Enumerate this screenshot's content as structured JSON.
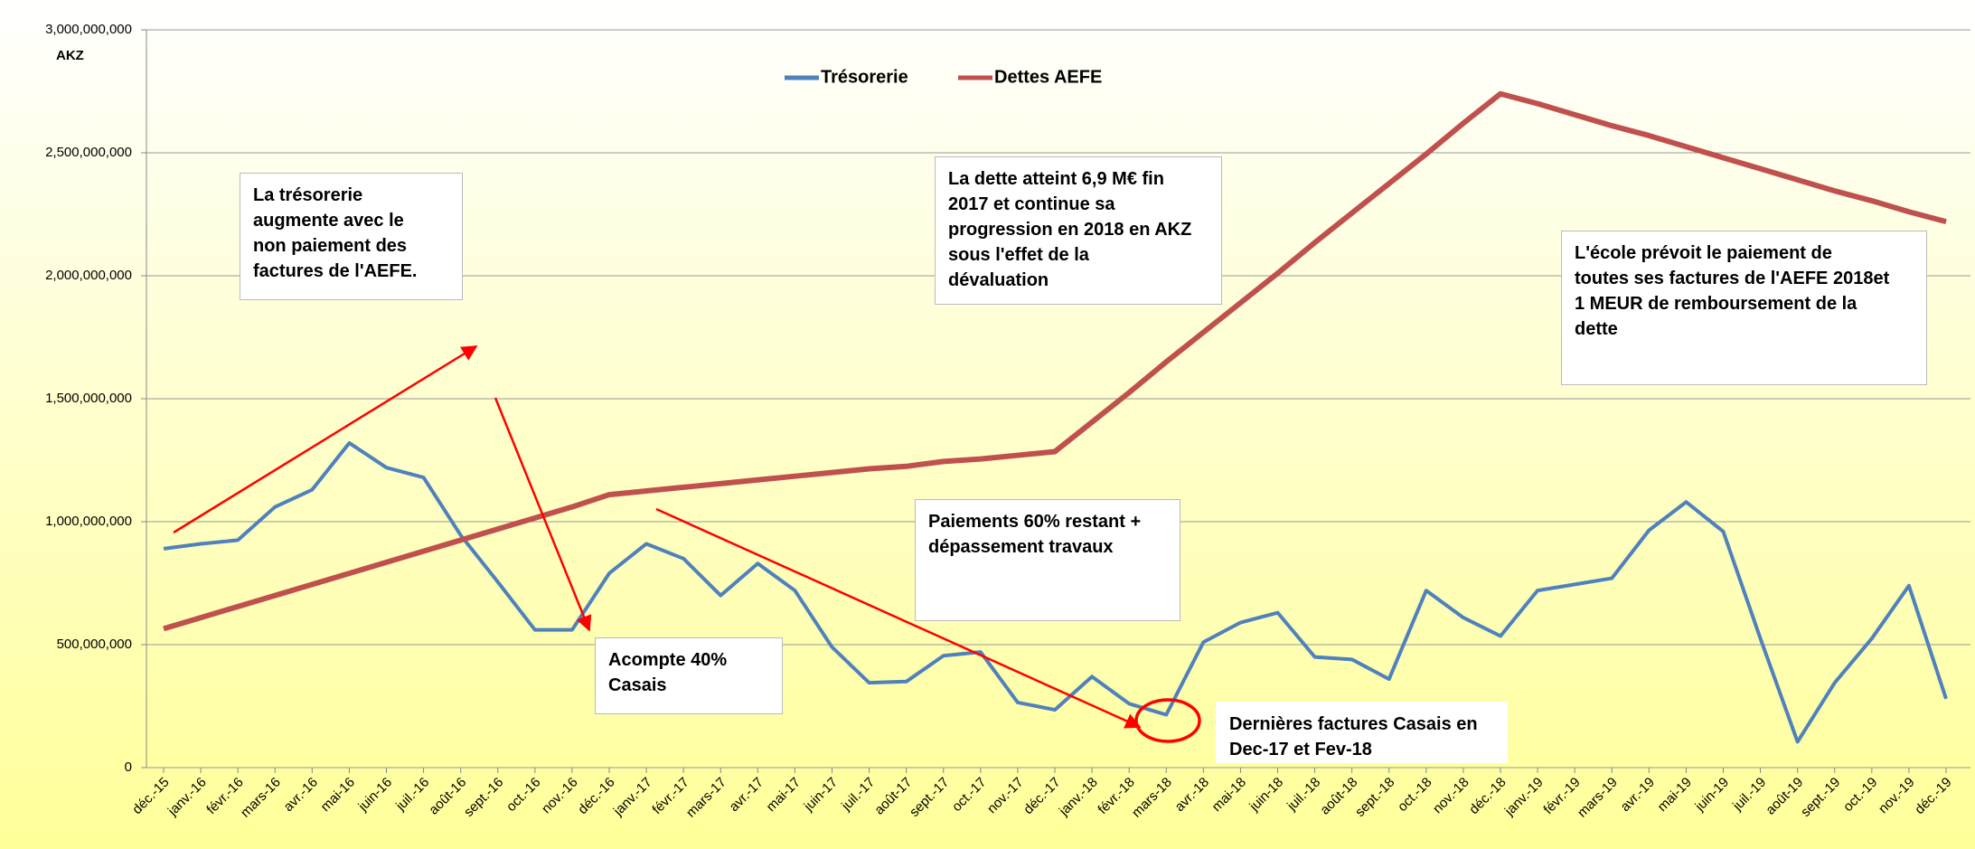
{
  "chart_data": {
    "type": "line",
    "y_unit_label": "AKZ",
    "categories": [
      "déc.-15",
      "janv.-16",
      "févr.-16",
      "mars-16",
      "avr.-16",
      "mai-16",
      "juin-16",
      "juil.-16",
      "août-16",
      "sept.-16",
      "oct.-16",
      "nov.-16",
      "déc.-16",
      "janv.-17",
      "févr.-17",
      "mars-17",
      "avr.-17",
      "mai-17",
      "juin-17",
      "juil.-17",
      "août-17",
      "sept.-17",
      "oct.-17",
      "nov.-17",
      "déc.-17",
      "janv.-18",
      "févr.-18",
      "mars-18",
      "avr.-18",
      "mai-18",
      "juin-18",
      "juil.-18",
      "août-18",
      "sept.-18",
      "oct.-18",
      "nov.-18",
      "déc.-18",
      "janv.-19",
      "févr.-19",
      "mars-19",
      "avr.-19",
      "mai-19",
      "juin-19",
      "juil.-19",
      "août-19",
      "sept.-19",
      "oct.-19",
      "nov.-19",
      "déc.-19"
    ],
    "series": [
      {
        "name": "Trésorerie",
        "color": "#4f81bd",
        "values": [
          890000000,
          910000000,
          925000000,
          1060000000,
          1130000000,
          1320000000,
          1220000000,
          1180000000,
          945000000,
          755000000,
          560000000,
          560000000,
          790000000,
          910000000,
          850000000,
          700000000,
          830000000,
          720000000,
          490000000,
          345000000,
          350000000,
          455000000,
          470000000,
          265000000,
          235000000,
          370000000,
          260000000,
          215000000,
          510000000,
          590000000,
          630000000,
          450000000,
          440000000,
          360000000,
          720000000,
          610000000,
          535000000,
          720000000,
          745000000,
          770000000,
          965000000,
          1080000000,
          960000000,
          525000000,
          105000000,
          345000000,
          525000000,
          740000000,
          280000000
        ]
      },
      {
        "name": "Dettes AEFE",
        "color": "#c0504d",
        "values": [
          565000000,
          610000000,
          655000000,
          700000000,
          745000000,
          790000000,
          835000000,
          880000000,
          925000000,
          970000000,
          1015000000,
          1060000000,
          1110000000,
          1125000000,
          1140000000,
          1155000000,
          1170000000,
          1185000000,
          1200000000,
          1215000000,
          1225000000,
          1245000000,
          1255000000,
          1270000000,
          1285000000,
          1405000000,
          1525000000,
          1650000000,
          1770000000,
          1890000000,
          2010000000,
          2135000000,
          2255000000,
          2375000000,
          2495000000,
          2620000000,
          2740000000,
          2700000000,
          2655000000,
          2610000000,
          2570000000,
          2525000000,
          2480000000,
          2435000000,
          2390000000,
          2345000000,
          2305000000,
          2260000000,
          2220000000
        ]
      }
    ],
    "ylim": [
      0,
      3000000000
    ],
    "yticks": [
      0,
      {
        "value": 500000000,
        "label": "500,000,000"
      },
      {
        "value": 1000000000,
        "label": "1,000,000,000"
      },
      {
        "value": 1500000000,
        "label": "1,500,000,000"
      },
      {
        "value": 2000000000,
        "label": "2,000,000,000"
      },
      {
        "value": 2500000000,
        "label": "2,500,000,000"
      },
      {
        "value": 3000000000,
        "label": "3,000,000,000"
      }
    ],
    "grid": true,
    "legend": "top",
    "annotations": [
      {
        "lines": [
          "La trésorerie",
          "augmente avec le",
          "non paiement des",
          "factures de l'AEFE."
        ]
      },
      {
        "lines": [
          "La dette atteint 6,9 M€ fin",
          "2017 et continue sa",
          "progression en 2018 en AKZ",
          "sous l'effet de la",
          "dévaluation"
        ]
      },
      {
        "lines": [
          "L'école prévoit le paiement de",
          "toutes ses factures de l'AEFE 2018et",
          "1 MEUR de remboursement de la",
          "dette"
        ]
      },
      {
        "lines": [
          "Paiements 60% restant +",
          "dépassement travaux"
        ]
      },
      {
        "lines": [
          "Acompte 40%",
          "Casais"
        ]
      },
      {
        "lines": [
          "Dernières factures Casais en",
          "Dec-17 et Fev-18"
        ]
      }
    ]
  }
}
